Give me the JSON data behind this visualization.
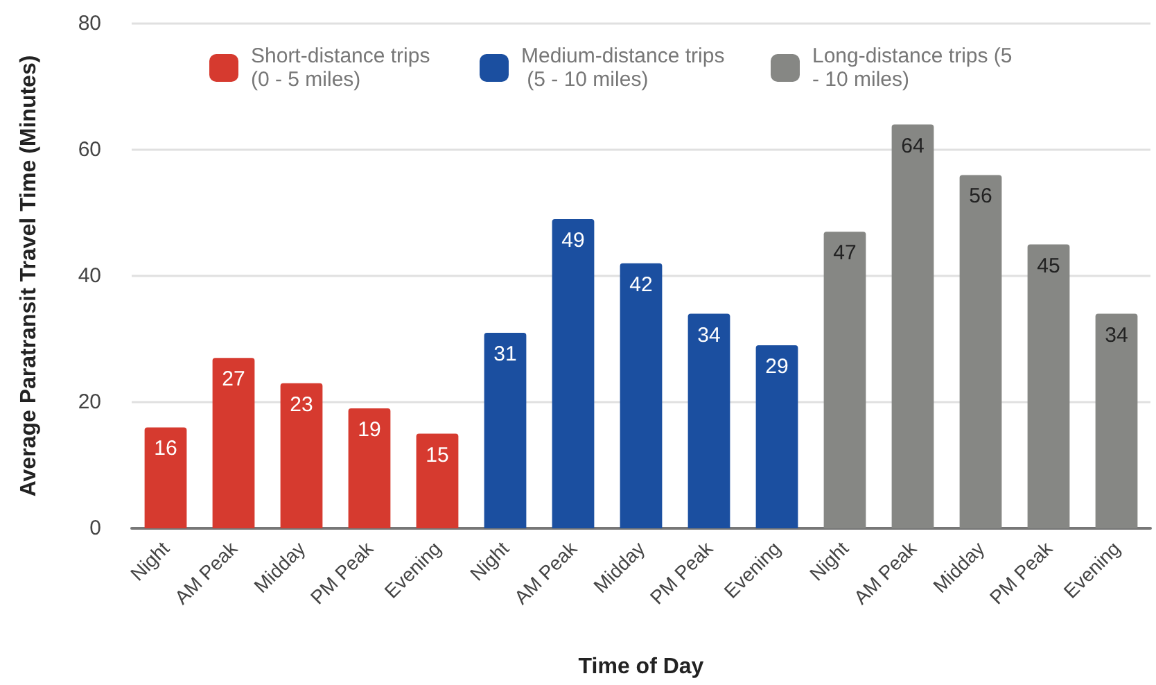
{
  "chart_data": {
    "type": "bar",
    "xlabel": "Time of Day",
    "ylabel": "Average Paratransit Travel Time (Minutes)",
    "categories": [
      "Night",
      "AM Peak",
      "Midday",
      "PM Peak",
      "Evening",
      "Night",
      "AM Peak",
      "Midday",
      "PM Peak",
      "Evening",
      "Night",
      "AM Peak",
      "Midday",
      "PM Peak",
      "Evening"
    ],
    "series": [
      {
        "name": "Short-distance trips (0 - 5 miles)",
        "color": "#d63a2f",
        "values": [
          16,
          27,
          23,
          19,
          15,
          null,
          null,
          null,
          null,
          null,
          null,
          null,
          null,
          null,
          null
        ]
      },
      {
        "name": "Medium-distance trips (5 - 10 miles)",
        "color": "#1b4fa0",
        "values": [
          null,
          null,
          null,
          null,
          null,
          31,
          49,
          42,
          34,
          29,
          null,
          null,
          null,
          null,
          null
        ]
      },
      {
        "name": "Long-distance trips (5 - 10 miles)",
        "color": "#868784",
        "values": [
          null,
          null,
          null,
          null,
          null,
          null,
          null,
          null,
          null,
          null,
          47,
          64,
          56,
          45,
          34
        ]
      }
    ],
    "ylim": [
      0,
      80
    ],
    "yticks": [
      0,
      20,
      40,
      60,
      80
    ],
    "grid": "y",
    "legend": "top",
    "data_labels": true
  }
}
